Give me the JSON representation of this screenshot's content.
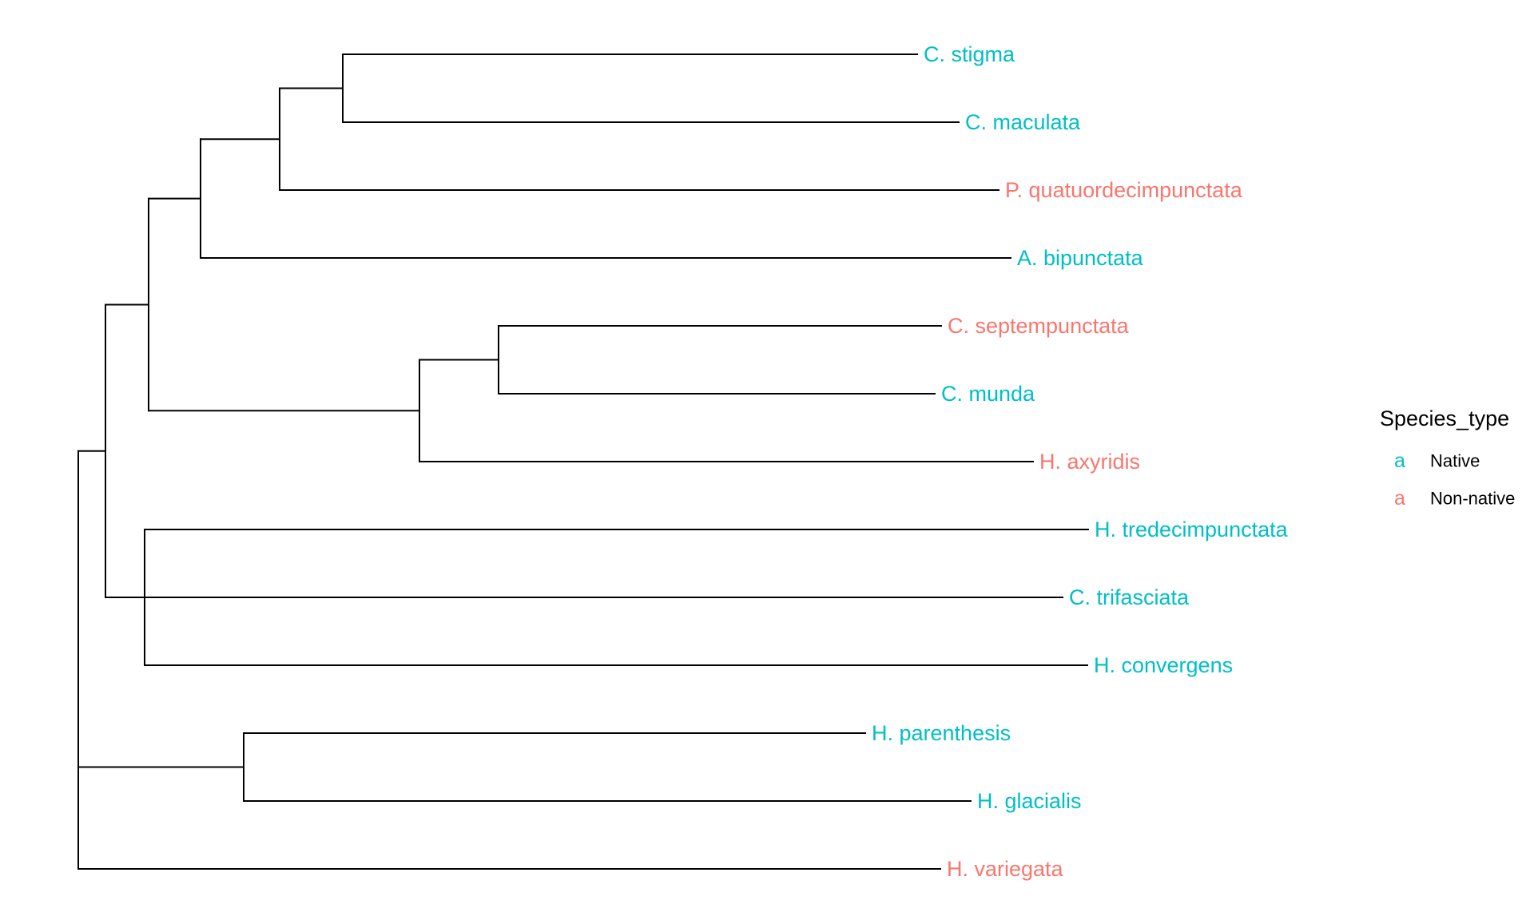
{
  "legend": {
    "title": "Species_type",
    "key_glyph": "a",
    "items": [
      {
        "name": "Native",
        "color": "#00BFC4"
      },
      {
        "name": "Non-native",
        "color": "#F8766D"
      }
    ]
  },
  "tips": [
    {
      "id": "t1",
      "label": "C. stigma",
      "type": "Native"
    },
    {
      "id": "t2",
      "label": "C. maculata",
      "type": "Native"
    },
    {
      "id": "t3",
      "label": "P. quatuordecimpunctata",
      "type": "Non-native"
    },
    {
      "id": "t4",
      "label": "A. bipunctata",
      "type": "Native"
    },
    {
      "id": "t5",
      "label": "C. septempunctata",
      "type": "Non-native"
    },
    {
      "id": "t6",
      "label": "C. munda",
      "type": "Native"
    },
    {
      "id": "t7",
      "label": "H. axyridis",
      "type": "Non-native"
    },
    {
      "id": "t8",
      "label": "H. tredecimpunctata",
      "type": "Native"
    },
    {
      "id": "t9",
      "label": "C. trifasciata",
      "type": "Native"
    },
    {
      "id": "t10",
      "label": "H. convergens",
      "type": "Native"
    },
    {
      "id": "t11",
      "label": "H. parenthesis",
      "type": "Native"
    },
    {
      "id": "t12",
      "label": "H. glacialis",
      "type": "Native"
    },
    {
      "id": "t13",
      "label": "H. variegata",
      "type": "Non-native"
    }
  ]
}
